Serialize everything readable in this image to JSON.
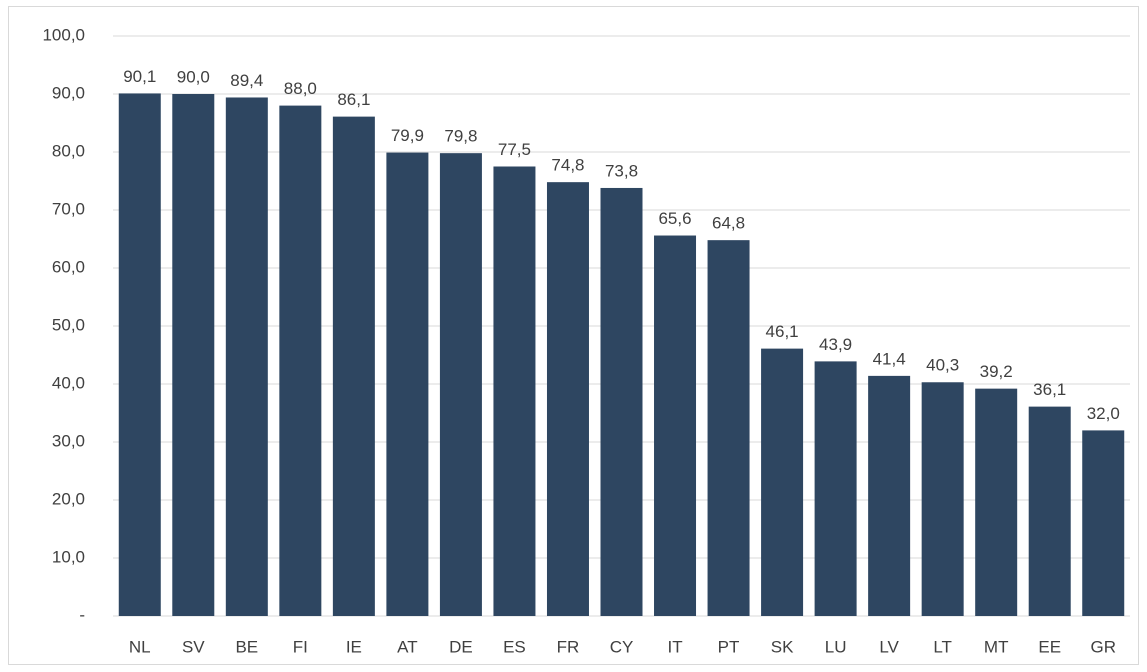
{
  "chart_data": {
    "type": "bar",
    "categories": [
      "NL",
      "SV",
      "BE",
      "FI",
      "IE",
      "AT",
      "DE",
      "ES",
      "FR",
      "CY",
      "IT",
      "PT",
      "SK",
      "LU",
      "LV",
      "LT",
      "MT",
      "EE",
      "GR"
    ],
    "values": [
      90.1,
      90.0,
      89.4,
      88.0,
      86.1,
      79.9,
      79.8,
      77.5,
      74.8,
      73.8,
      65.6,
      64.8,
      46.1,
      43.9,
      41.4,
      40.3,
      39.2,
      36.1,
      32.0
    ],
    "value_labels": [
      "90,1",
      "90,0",
      "89,4",
      "88,0",
      "86,1",
      "79,9",
      "79,8",
      "77,5",
      "74,8",
      "73,8",
      "65,6",
      "64,8",
      "46,1",
      "43,9",
      "41,4",
      "40,3",
      "39,2",
      "36,1",
      "32,0"
    ],
    "color": "#2e4661",
    "ylim": [
      0,
      100
    ],
    "yticks": [
      {
        "value": 0,
        "label": "-"
      },
      {
        "value": 10,
        "label": "10,0"
      },
      {
        "value": 20,
        "label": "20,0"
      },
      {
        "value": 30,
        "label": "30,0"
      },
      {
        "value": 40,
        "label": "40,0"
      },
      {
        "value": 50,
        "label": "50,0"
      },
      {
        "value": 60,
        "label": "60,0"
      },
      {
        "value": 70,
        "label": "70,0"
      },
      {
        "value": 80,
        "label": "80,0"
      },
      {
        "value": 90,
        "label": "90,0"
      },
      {
        "value": 100,
        "label": "100,0"
      }
    ],
    "grid": true
  }
}
